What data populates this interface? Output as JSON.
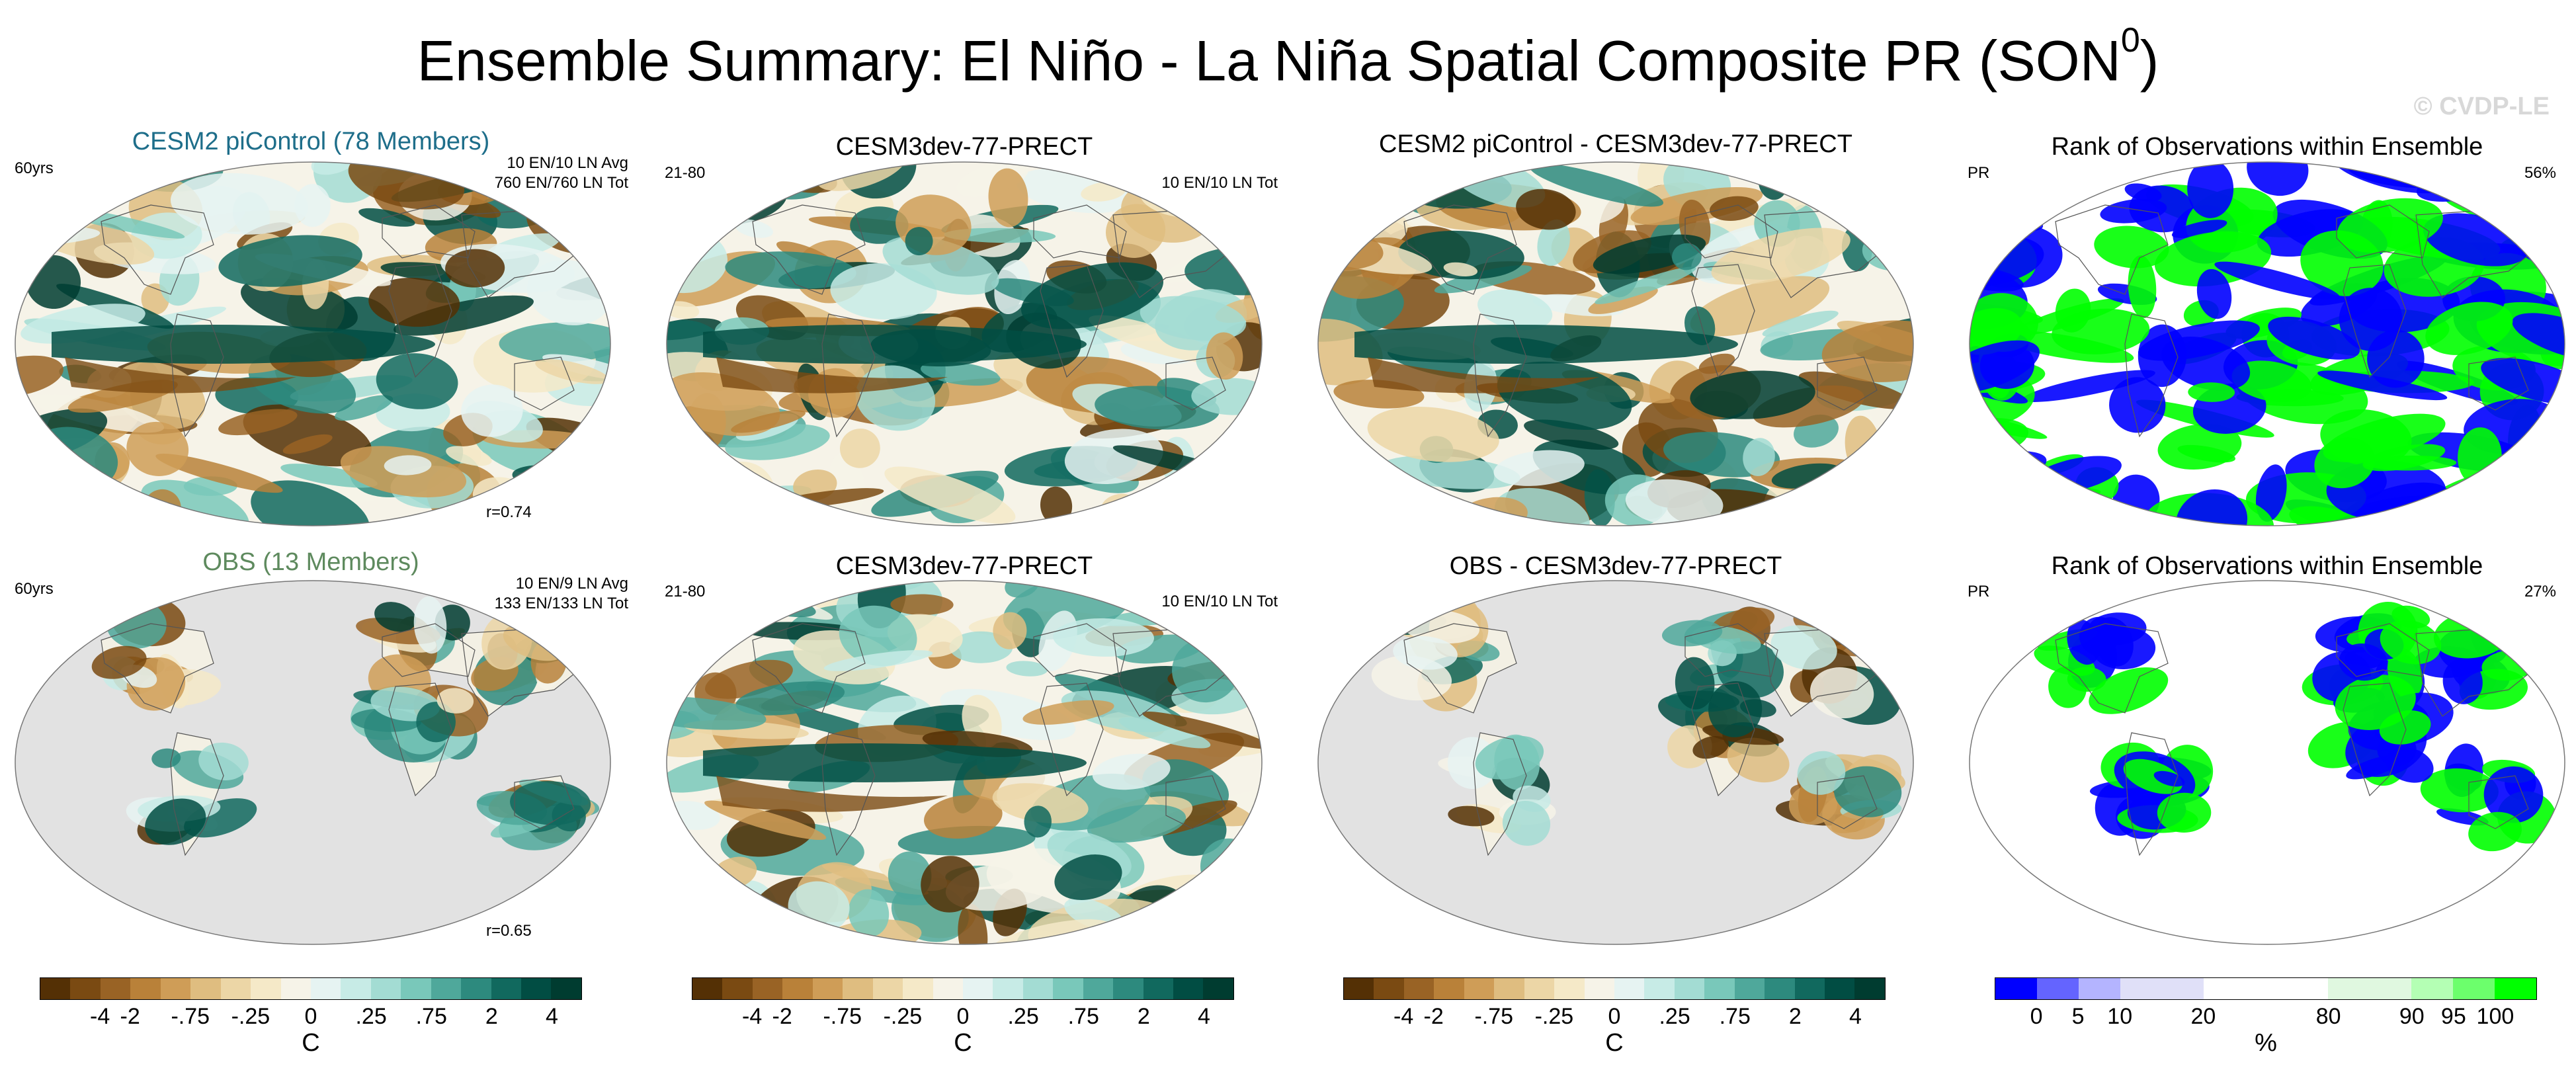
{
  "title_main": "Ensemble Summary: El Niño - La Niña Spatial Composite PR (SON",
  "title_sup": "0",
  "title_close": ")",
  "watermark": "© CVDP-LE",
  "colors": {
    "ens_title": "#1e6e8a",
    "obs_title": "#5e8a5e",
    "brown_dark": "#543005",
    "teal_dark": "#00402f",
    "rank_blue": "#0000ff",
    "rank_green": "#00ff00",
    "missing_gray": "#e2e2e2"
  },
  "panels": {
    "r1": {
      "ens": {
        "title": "CESM2 piControl (78 Members)",
        "left": "60yrs",
        "right1": "10 EN/10 LN Avg",
        "right2": "760 EN/760 LN Tot",
        "corr": "r=0.74"
      },
      "model": {
        "title": "CESM3dev-77-PRECT",
        "left": "21-80",
        "right": "10 EN/10 LN Tot"
      },
      "diff": {
        "title": "CESM2 piControl - CESM3dev-77-PRECT"
      },
      "rank": {
        "title": "Rank of Observations within Ensemble",
        "left": "PR",
        "right": "56%"
      }
    },
    "r2": {
      "ens": {
        "title": "OBS (13 Members)",
        "left": "60yrs",
        "right1": "10 EN/9 LN Avg",
        "right2": "133 EN/133 LN Tot",
        "corr": "r=0.65"
      },
      "model": {
        "title": "CESM3dev-77-PRECT",
        "left": "21-80",
        "right": "10 EN/10 LN Tot"
      },
      "diff": {
        "title": "OBS - CESM3dev-77-PRECT"
      },
      "rank": {
        "title": "Rank of Observations within Ensemble",
        "left": "PR",
        "right": "27%"
      }
    }
  },
  "colorbars": {
    "pr": {
      "colors": [
        "#543005",
        "#7a4a12",
        "#996325",
        "#b98139",
        "#cf9d57",
        "#dfbd80",
        "#ecd6a6",
        "#f5e9c8",
        "#f6f3e8",
        "#e6f3f2",
        "#c7ebe6",
        "#a3dcd3",
        "#79c8ba",
        "#4fa89b",
        "#2d8a7e",
        "#11695e",
        "#014d43",
        "#003c30"
      ],
      "ticks": [
        "-4",
        "-2",
        "-.75",
        "-.25",
        "0",
        ".25",
        ".75",
        "2",
        "4"
      ],
      "unit": "C"
    },
    "rank": {
      "colors": [
        "#0000ff",
        "#6464ff",
        "#b4b4ff",
        "#e0e0f8",
        "#e0e0f8",
        "#ffffff",
        "#ffffff",
        "#ffffff",
        "#e0f8e0",
        "#e0f8e0",
        "#b4ffb4",
        "#6cff6c",
        "#00ff00"
      ],
      "ticks": [
        "0",
        "5",
        "10",
        "20",
        "80",
        "90",
        "95",
        "100"
      ],
      "unit": "%"
    }
  }
}
